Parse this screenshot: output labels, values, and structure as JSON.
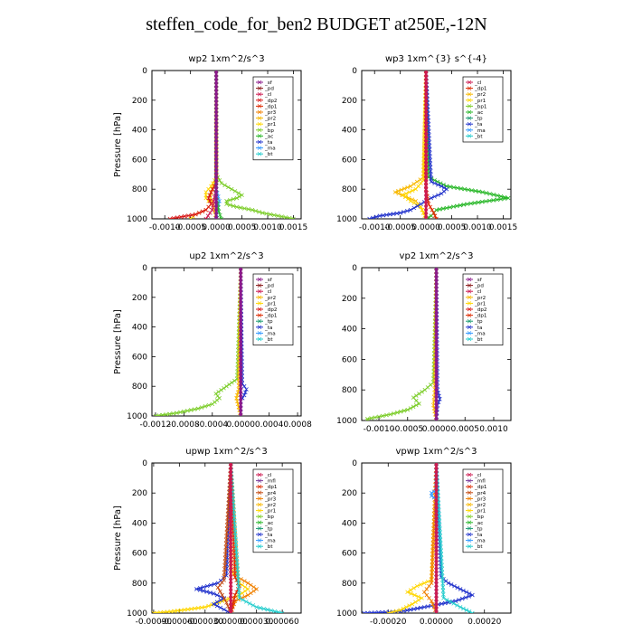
{
  "page": {
    "title": "steffen_code_for_ben2  BUDGET at250E,-12N"
  },
  "panel_layout": [
    "wp2",
    "wp3",
    "up2",
    "vp2",
    "upwp",
    "vpwp"
  ],
  "colors": {
    "sf": "#8b1a8b",
    "pd": "#8b1a1a",
    "cl": "#cc1a50",
    "dp2": "#d81818",
    "dp1": "#dd2a00",
    "pr3": "#f08000",
    "pr2": "#f8b800",
    "pr1": "#ffd600",
    "bp": "#7ccd2a",
    "ac": "#2ab82a",
    "tp": "#1a9a70",
    "ta": "#2233cc",
    "ma": "#3399ff",
    "bt": "#22cccc",
    "mfl": "#7a3a9a",
    "pr4": "#c44a10"
  },
  "chart_data": [
    {
      "id": "wp2",
      "type": "line",
      "title": "wp2   1xm^2/s^3",
      "ylabel": "Pressure [hPa]",
      "ylim": [
        1000,
        0
      ],
      "xlim": [
        -0.00125,
        0.00165
      ],
      "xticks": [
        -0.001,
        -0.0005,
        0.0,
        0.0005,
        0.001,
        0.0015
      ],
      "xtick_labels": [
        "-0.0010",
        "-0.0005",
        "0.0000",
        "0.0005",
        "0.0010",
        "0.0015"
      ],
      "yticks": [
        0,
        200,
        400,
        600,
        800,
        1000
      ],
      "legend": [
        "_sf",
        "_pd",
        "_cl",
        "_dp2",
        "_dp1",
        "_pr3",
        "_pr2",
        "_pr1",
        "_bp",
        "_ac",
        "_ta",
        "_ma",
        "_bt"
      ],
      "legend_keys": [
        "sf",
        "pd",
        "cl",
        "dp2",
        "dp1",
        "pr3",
        "pr2",
        "pr1",
        "bp",
        "ac",
        "ta",
        "ma",
        "bt"
      ],
      "series": [
        {
          "key": "bp",
          "p": [
            0,
            700,
            760,
            800,
            840,
            860,
            880,
            900,
            920,
            940,
            960,
            980,
            1000
          ],
          "x": [
            0,
            0,
            0.0001,
            0.0003,
            0.0005,
            0.0004,
            0.0002,
            0.0002,
            0.0004,
            0.0007,
            0.0009,
            0.0012,
            0.0015
          ]
        },
        {
          "key": "pr1",
          "p": [
            0,
            720,
            780,
            820,
            860,
            900,
            940,
            970,
            1000
          ],
          "x": [
            0,
            0,
            -0.0001,
            -0.0002,
            -0.0002,
            -0.0001,
            -0.0002,
            -0.0004,
            -0.0005
          ]
        },
        {
          "key": "pr2",
          "p": [
            0,
            740,
            800,
            850,
            900,
            950,
            1000
          ],
          "x": [
            0,
            0,
            -8e-05,
            -0.00012,
            -6e-05,
            -3e-05,
            0
          ]
        },
        {
          "key": "dp2",
          "p": [
            0,
            760,
            820,
            860,
            900,
            940,
            970,
            1000
          ],
          "x": [
            0,
            0,
            -0.0001,
            -0.00015,
            -0.0001,
            -0.0002,
            -0.0004,
            -0.0009
          ]
        },
        {
          "key": "cl",
          "p": [
            0,
            800,
            880,
            940,
            1000
          ],
          "x": [
            0,
            0,
            -5e-05,
            -8e-05,
            -0.0002
          ]
        },
        {
          "key": "ma",
          "p": [
            0,
            800,
            850,
            880,
            920,
            1000
          ],
          "x": [
            0,
            0,
            4e-05,
            6e-05,
            3e-05,
            0
          ]
        },
        {
          "key": "ac",
          "p": [
            0,
            850,
            950,
            1000
          ],
          "x": [
            0,
            0,
            5e-05,
            0.0001
          ]
        },
        {
          "key": "sf",
          "p": [
            0,
            1000
          ],
          "x": [
            0,
            0
          ]
        }
      ]
    },
    {
      "id": "wp3",
      "type": "line",
      "title": "wp3   1xm^{3} s^{-4}",
      "ylabel": "",
      "ylim": [
        1000,
        0
      ],
      "xlim": [
        -0.00125,
        0.00165
      ],
      "xticks": [
        -0.001,
        -0.0005,
        0.0,
        0.0005,
        0.001,
        0.0015
      ],
      "xtick_labels": [
        "-0.0010",
        "-0.0005",
        "0.0000",
        "0.0005",
        "0.0010",
        "0.0015"
      ],
      "yticks": [
        0,
        200,
        400,
        600,
        800,
        1000
      ],
      "legend": [
        "_cl",
        "_dp1",
        "_pr2",
        "_pr1",
        "_bp1",
        "_ac",
        "_tp",
        "_ta",
        "_ma",
        "_bt"
      ],
      "legend_keys": [
        "cl",
        "dp1",
        "pr2",
        "pr1",
        "bp",
        "ac",
        "tp",
        "ta",
        "ma",
        "bt"
      ],
      "series": [
        {
          "key": "ac",
          "p": [
            0,
            720,
            780,
            820,
            860,
            900,
            940,
            980,
            1000
          ],
          "x": [
            0,
            5e-05,
            0.0004,
            0.0011,
            0.0016,
            0.0008,
            0.0002,
            0.0001,
            0
          ]
        },
        {
          "key": "pr2",
          "p": [
            0,
            720,
            780,
            820,
            850,
            880,
            920,
            960,
            1000
          ],
          "x": [
            0,
            -5e-05,
            -0.0003,
            -0.0006,
            -0.0004,
            -0.0002,
            -0.0001,
            -5e-05,
            0
          ]
        },
        {
          "key": "pr1",
          "p": [
            0,
            740,
            800,
            840,
            880,
            920,
            1000
          ],
          "x": [
            0,
            -5e-05,
            -0.0002,
            -0.00045,
            -0.0003,
            -0.0001,
            0
          ]
        },
        {
          "key": "ta",
          "p": [
            0,
            750,
            780,
            800,
            830,
            860,
            900,
            940,
            960,
            980,
            1000
          ],
          "x": [
            0,
            0.0001,
            0.0003,
            0.0004,
            0.0003,
            0.0001,
            -0.0001,
            -0.0003,
            -0.0005,
            -0.0009,
            -0.0011
          ]
        },
        {
          "key": "dp1",
          "p": [
            0,
            800,
            900,
            960,
            1000
          ],
          "x": [
            0,
            0,
            5e-05,
            0.00015,
            0.0002
          ]
        },
        {
          "key": "cl",
          "p": [
            0,
            1000
          ],
          "x": [
            0,
            0
          ]
        }
      ]
    },
    {
      "id": "up2",
      "type": "line",
      "title": "up2   1xm^2/s^3",
      "ylabel": "Pressure [hPa]",
      "ylim": [
        1000,
        0
      ],
      "xlim": [
        -0.00125,
        0.00085
      ],
      "xticks": [
        -0.0012,
        -0.0008,
        -0.0004,
        0.0,
        0.0004,
        0.0008
      ],
      "xtick_labels": [
        "-0.0012",
        "-0.0008",
        "-0.0004",
        "0.0000",
        "0.0004",
        "0.0008"
      ],
      "yticks": [
        0,
        200,
        400,
        600,
        800,
        1000
      ],
      "legend": [
        "_sf",
        "_pd",
        "_cl",
        "_pr2",
        "_pr1",
        "_dp2",
        "_dp1",
        "_tp",
        "_ta",
        "_ma",
        "_bt"
      ],
      "legend_keys": [
        "sf",
        "pd",
        "cl",
        "pr2",
        "pr1",
        "dp2",
        "dp1",
        "tp",
        "ta",
        "ma",
        "bt"
      ],
      "series": [
        {
          "key": "bp",
          "p": [
            0,
            750,
            800,
            850,
            880,
            920,
            950,
            980,
            1000
          ],
          "x": [
            0,
            -5e-05,
            -0.0002,
            -0.00035,
            -0.0003,
            -0.0004,
            -0.0006,
            -0.0009,
            -0.0012
          ]
        },
        {
          "key": "ta",
          "p": [
            0,
            780,
            820,
            860,
            900,
            1000
          ],
          "x": [
            0,
            2e-05,
            8e-05,
            5e-05,
            0,
            0
          ]
        },
        {
          "key": "pr2",
          "p": [
            0,
            820,
            880,
            940,
            1000
          ],
          "x": [
            0,
            -3e-05,
            -6e-05,
            -3e-05,
            0
          ]
        },
        {
          "key": "sf",
          "p": [
            0,
            1000
          ],
          "x": [
            0,
            0
          ]
        }
      ]
    },
    {
      "id": "vp2",
      "type": "line",
      "title": "vp2   1xm^2/s^3",
      "ylabel": "",
      "ylim": [
        1000,
        0
      ],
      "xlim": [
        -0.0013,
        0.0013
      ],
      "xticks": [
        -0.001,
        -0.0005,
        0.0,
        0.0005,
        0.001
      ],
      "xtick_labels": [
        "-0.0010",
        "-0.0005",
        "0.0000",
        "0.0005",
        "0.0010"
      ],
      "yticks": [
        0,
        200,
        400,
        600,
        800,
        1000
      ],
      "legend": [
        "_sf",
        "_pd",
        "_cl",
        "_pr2",
        "_pr1",
        "_dp2",
        "_dp1",
        "_tp",
        "_ta",
        "_ma",
        "_bt"
      ],
      "legend_keys": [
        "sf",
        "pd",
        "cl",
        "pr2",
        "pr1",
        "dp2",
        "dp1",
        "tp",
        "ta",
        "ma",
        "bt"
      ],
      "series": [
        {
          "key": "bp",
          "p": [
            0,
            750,
            800,
            850,
            890,
            930,
            960,
            990,
            1000
          ],
          "x": [
            0,
            -5e-05,
            -0.0002,
            -0.0004,
            -0.0003,
            -0.0005,
            -0.0008,
            -0.0012,
            -0.0012
          ]
        },
        {
          "key": "ta",
          "p": [
            0,
            800,
            860,
            900,
            1000
          ],
          "x": [
            0,
            2e-05,
            6e-05,
            2e-05,
            0
          ]
        },
        {
          "key": "pr2",
          "p": [
            0,
            820,
            900,
            960,
            1000
          ],
          "x": [
            0,
            -3e-05,
            -5e-05,
            -2e-05,
            0
          ]
        },
        {
          "key": "sf",
          "p": [
            0,
            1000
          ],
          "x": [
            0,
            0
          ]
        }
      ]
    },
    {
      "id": "upwp",
      "type": "line",
      "title": "upwp   1xm^2/s^3",
      "ylabel": "Pressure [hPa]",
      "ylim": [
        1000,
        0
      ],
      "xlim": [
        -0.00092,
        0.00082
      ],
      "xticks": [
        -0.0009,
        -0.0006,
        -0.0003,
        0.0,
        0.0003,
        0.0006
      ],
      "xtick_labels": [
        "-0.00090",
        "-0.00060",
        "-0.00030",
        "0.00000",
        "0.00030",
        "0.00060"
      ],
      "yticks": [
        0,
        200,
        400,
        600,
        800,
        1000
      ],
      "legend": [
        "_cl",
        "_mfl",
        "_dp1",
        "_pr4",
        "_pr3",
        "_pr2",
        "_pr1",
        "_bp",
        "_ac",
        "_tp",
        "_ta",
        "_ma",
        "_bt"
      ],
      "legend_keys": [
        "cl",
        "mfl",
        "dp1",
        "pr4",
        "pr3",
        "pr2",
        "pr1",
        "bp",
        "ac",
        "tp",
        "ta",
        "ma",
        "bt"
      ],
      "series": [
        {
          "key": "pr1",
          "p": [
            0,
            700,
            760,
            800,
            840,
            880,
            920,
            960,
            990,
            1000
          ],
          "x": [
            0,
            0,
            5e-05,
            0.0001,
            0.0002,
            0.0001,
            -0.0001,
            -0.0003,
            -0.0007,
            -0.0009
          ]
        },
        {
          "key": "pr3",
          "p": [
            0,
            760,
            800,
            840,
            880,
            920,
            1000
          ],
          "x": [
            0,
            8e-05,
            0.0002,
            0.0003,
            0.0002,
            5e-05,
            0
          ]
        },
        {
          "key": "ta",
          "p": [
            0,
            750,
            800,
            840,
            870,
            900,
            940,
            1000
          ],
          "x": [
            0,
            -5e-05,
            -0.00015,
            -0.0004,
            -0.0002,
            -8e-05,
            -0.0002,
            0
          ]
        },
        {
          "key": "pr4",
          "p": [
            0,
            780,
            830,
            880,
            930,
            1000
          ],
          "x": [
            0,
            -8e-05,
            -0.00015,
            -0.0001,
            -5e-05,
            0
          ]
        },
        {
          "key": "dp1",
          "p": [
            0,
            760,
            820,
            880,
            1000
          ],
          "x": [
            0,
            5e-05,
            0.0001,
            5e-05,
            0
          ]
        },
        {
          "key": "bt",
          "p": [
            0,
            900,
            960,
            1000
          ],
          "x": [
            0,
            0.0001,
            0.0003,
            0.0006
          ]
        },
        {
          "key": "cl",
          "p": [
            0,
            1000
          ],
          "x": [
            0,
            0
          ]
        }
      ]
    },
    {
      "id": "vpwp",
      "type": "line",
      "title": "vpwp   1xm^2/s^3",
      "ylabel": "",
      "ylim": [
        1000,
        0
      ],
      "xlim": [
        -0.00031,
        0.00031
      ],
      "xticks": [
        -0.0002,
        0.0,
        0.0002
      ],
      "xtick_labels": [
        "-0.00020",
        "0.00000",
        "0.00020"
      ],
      "yticks": [
        0,
        200,
        400,
        600,
        800,
        1000
      ],
      "legend": [
        "_cl",
        "_mfl",
        "_dp1",
        "_pr4",
        "_pr3",
        "_pr2",
        "_pr1",
        "_bp",
        "_ac",
        "_tp",
        "_ta",
        "_ma",
        "_bt"
      ],
      "legend_keys": [
        "cl",
        "mfl",
        "dp1",
        "pr4",
        "pr3",
        "pr2",
        "pr1",
        "bp",
        "ac",
        "tp",
        "ta",
        "ma",
        "bt"
      ],
      "series": [
        {
          "key": "ta",
          "p": [
            0,
            760,
            800,
            840,
            880,
            920,
            960,
            990,
            1000
          ],
          "x": [
            0,
            2e-05,
            5e-05,
            0.0001,
            0.00015,
            8e-05,
            -5e-05,
            -0.00015,
            -0.0003
          ]
        },
        {
          "key": "pr1",
          "p": [
            0,
            780,
            820,
            860,
            900,
            940,
            980,
            1000
          ],
          "x": [
            0,
            -2e-05,
            -8e-05,
            -0.00012,
            -6e-05,
            -0.0001,
            -0.00015,
            -0.0002
          ]
        },
        {
          "key": "pr3",
          "p": [
            0,
            800,
            860,
            920,
            1000
          ],
          "x": [
            0,
            -2e-05,
            -5e-05,
            -2e-05,
            0
          ]
        },
        {
          "key": "ma",
          "p": [
            0,
            180,
            200,
            220,
            240,
            1000
          ],
          "x": [
            0,
            0,
            -2e-05,
            -2e-05,
            0,
            0
          ]
        },
        {
          "key": "bt",
          "p": [
            0,
            900,
            960,
            1000
          ],
          "x": [
            0,
            3e-05,
            0.0001,
            0.00015
          ]
        },
        {
          "key": "cl",
          "p": [
            0,
            1000
          ],
          "x": [
            0,
            0
          ]
        }
      ]
    }
  ]
}
